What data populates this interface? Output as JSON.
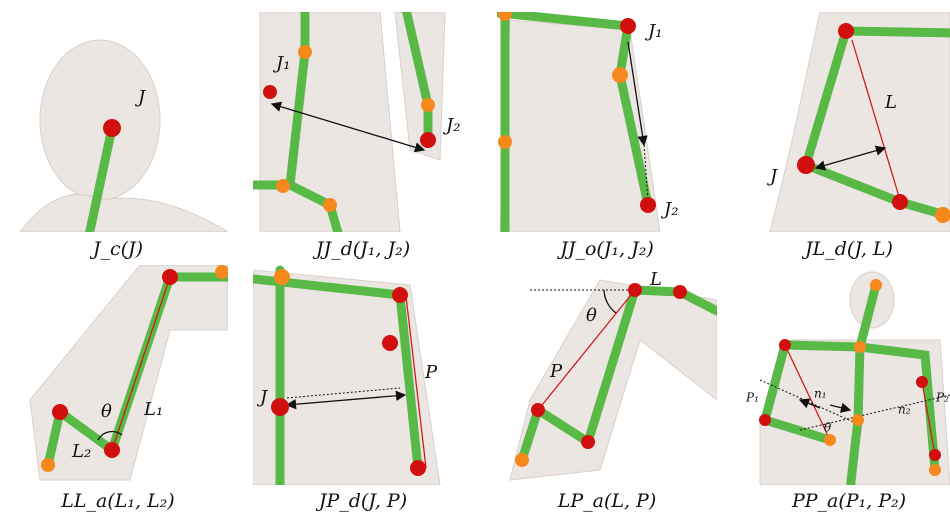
{
  "panels": [
    {
      "caption": "J_c(J)",
      "labels": [
        "J"
      ]
    },
    {
      "caption": "JJ_d(J₁, J₂)",
      "labels": [
        "J₁",
        "J₂"
      ]
    },
    {
      "caption": "JJ_o(J₁, J₂)",
      "labels": [
        "J₁",
        "J₂"
      ]
    },
    {
      "caption": "JL_d(J, L)",
      "labels": [
        "L",
        "J"
      ]
    },
    {
      "caption": "LL_a(L₁, L₂)",
      "labels": [
        "θ",
        "L₁",
        "L₂"
      ]
    },
    {
      "caption": "JP_d(J, P)",
      "labels": [
        "P",
        "J"
      ]
    },
    {
      "caption": "LP_a(L, P)",
      "labels": [
        "L",
        "θ",
        "P"
      ]
    },
    {
      "caption": "PP_a(P₁, P₂)",
      "labels": [
        "P₁",
        "n₁",
        "θ",
        "n₂",
        "P₂"
      ]
    }
  ]
}
